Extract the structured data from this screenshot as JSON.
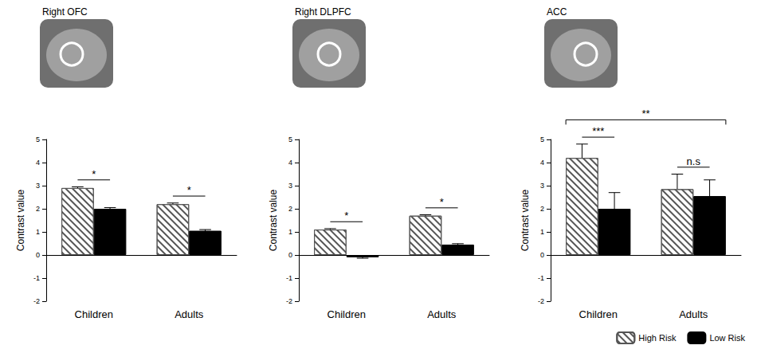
{
  "chart_data": [
    {
      "type": "bar",
      "title": "Right OFC",
      "y_label": "Contrast value",
      "categories": [
        "Children",
        "Adults"
      ],
      "series": [
        {
          "name": "High Risk",
          "color": "#555555",
          "values": [
            2.9,
            2.2
          ],
          "errors": [
            0.05,
            0.05
          ]
        },
        {
          "name": "Low Risk",
          "color": "#000000",
          "values": [
            2.0,
            1.05
          ],
          "errors": [
            0.05,
            0.05
          ]
        }
      ],
      "ylim": [
        -2,
        5
      ],
      "yticks": [
        -2,
        -1,
        0,
        1,
        2,
        3,
        4,
        5
      ],
      "grid": false,
      "annotations": [
        {
          "text": "*",
          "categories": [
            "Children"
          ]
        },
        {
          "text": "*",
          "categories": [
            "Adults"
          ]
        }
      ]
    },
    {
      "type": "bar",
      "title": "Right DLPFC",
      "y_label": "Contrast value",
      "categories": [
        "Children",
        "Adults"
      ],
      "series": [
        {
          "name": "High Risk",
          "color": "#555555",
          "values": [
            1.1,
            1.7
          ],
          "errors": [
            0.04,
            0.04
          ]
        },
        {
          "name": "Low Risk",
          "color": "#000000",
          "values": [
            -0.1,
            0.45
          ],
          "errors": [
            0.04,
            0.04
          ]
        }
      ],
      "ylim": [
        -2,
        5
      ],
      "yticks": [
        -2,
        -1,
        0,
        1,
        2,
        3,
        4,
        5
      ],
      "grid": false,
      "annotations": [
        {
          "text": "*",
          "categories": [
            "Children"
          ]
        },
        {
          "text": "*",
          "categories": [
            "Adults"
          ]
        }
      ]
    },
    {
      "type": "bar",
      "title": "ACC",
      "y_label": "Contrast value",
      "categories": [
        "Children",
        "Adults"
      ],
      "series": [
        {
          "name": "High Risk",
          "color": "#555555",
          "values": [
            4.2,
            2.85
          ],
          "errors": [
            0.6,
            0.65
          ]
        },
        {
          "name": "Low Risk",
          "color": "#000000",
          "values": [
            2.0,
            2.55
          ],
          "errors": [
            0.7,
            0.7
          ]
        }
      ],
      "ylim": [
        -2,
        5
      ],
      "yticks": [
        -2,
        -1,
        0,
        1,
        2,
        3,
        4,
        5
      ],
      "grid": false,
      "legend": "lower right",
      "annotations": [
        {
          "text": "***",
          "categories": [
            "Children"
          ]
        },
        {
          "text": "n.s",
          "categories": [
            "Adults"
          ]
        },
        {
          "text": "**",
          "categories": [
            "Children",
            "Adults"
          ]
        }
      ]
    }
  ]
}
